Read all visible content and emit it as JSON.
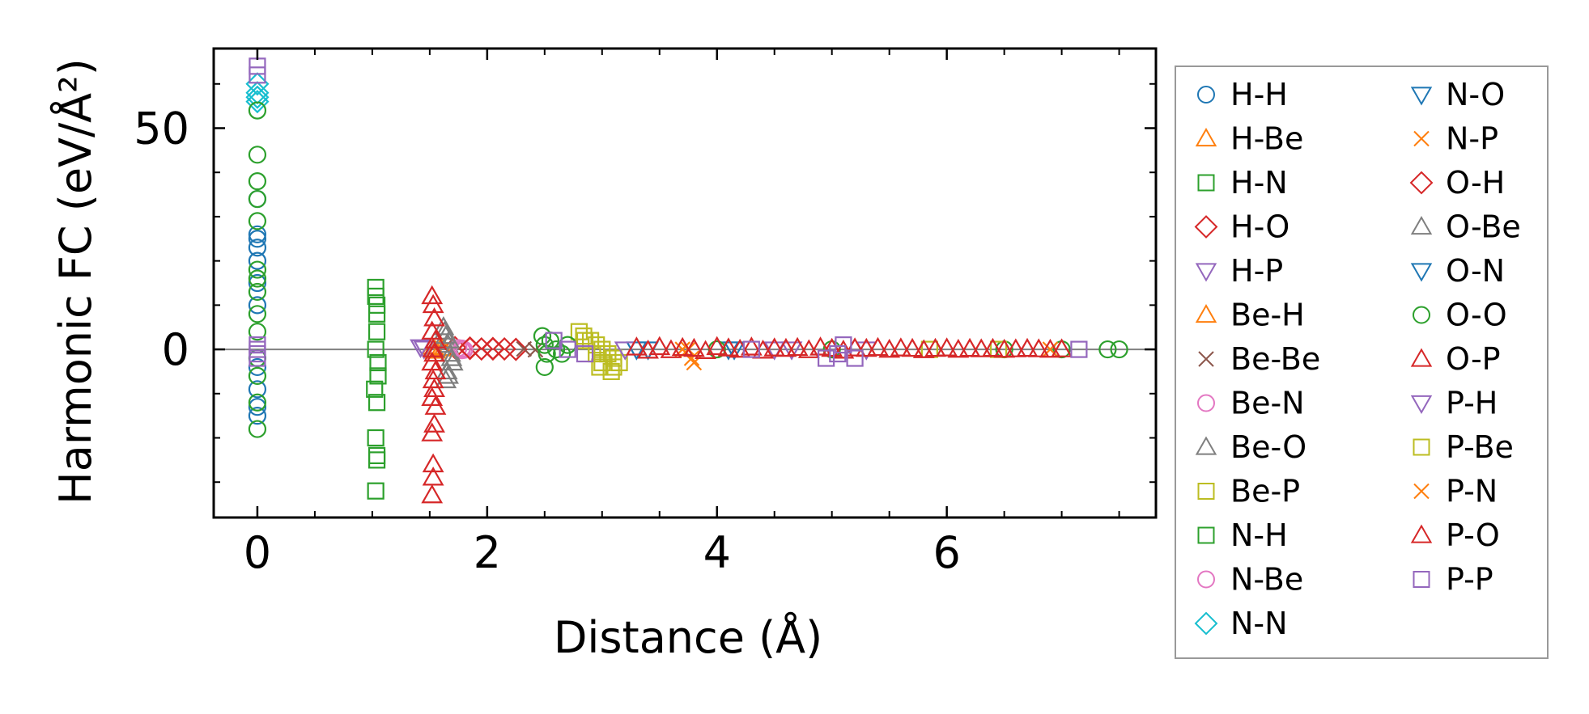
{
  "chart_data": {
    "type": "scatter",
    "title": "",
    "xlabel": "Distance (Å)",
    "ylabel": "Harmonic FC (eV/Å²)",
    "xlim": [
      -0.38,
      7.82
    ],
    "ylim": [
      -38,
      68
    ],
    "xticks": [
      0,
      2,
      4,
      6
    ],
    "xtick_labels": [
      "0",
      "2",
      "4",
      "6"
    ],
    "yticks": [
      0,
      50
    ],
    "ytick_labels": [
      "0",
      "50"
    ],
    "grid": false,
    "zero_line": true,
    "legend": {
      "position": "outside-right",
      "columns": 2
    },
    "series": [
      {
        "name": "H-H",
        "marker": "circle",
        "color": "#1f77b4",
        "x": [
          0,
          0,
          0,
          0,
          0,
          0,
          0,
          0,
          0,
          0,
          0
        ],
        "y": [
          34,
          26,
          25,
          23,
          20,
          15,
          10,
          -4,
          -9,
          -13,
          -15
        ]
      },
      {
        "name": "H-Be",
        "marker": "triangle-up",
        "color": "#ff7f0e",
        "x": [
          1.52,
          1.6
        ],
        "y": [
          0.6,
          0.3
        ]
      },
      {
        "name": "H-N",
        "marker": "square",
        "color": "#2ca02c",
        "x": [
          1.03,
          1.04,
          1.04,
          1.03,
          1.05,
          1.04,
          1.03,
          1.04,
          1.04,
          1.03
        ],
        "y": [
          14,
          10,
          4,
          0,
          -6,
          -12,
          -20,
          -24,
          -25,
          -32
        ]
      },
      {
        "name": "H-O",
        "marker": "diamond",
        "color": "#d62728",
        "x": [
          1.72,
          1.85,
          1.95,
          2.05,
          2.15,
          2.25
        ],
        "y": [
          0.4,
          0.2,
          0.1,
          0.1,
          0.1,
          0
        ]
      },
      {
        "name": "H-P",
        "marker": "triangle-down",
        "color": "#9467bd",
        "x": [
          1.42,
          1.45
        ],
        "y": [
          0.5,
          0.2
        ]
      },
      {
        "name": "Be-H",
        "marker": "triangle-up",
        "color": "#ff7f0e",
        "x": [
          1.55,
          1.62
        ],
        "y": [
          -0.3,
          0.2
        ]
      },
      {
        "name": "Be-Be",
        "marker": "x",
        "color": "#8c564b",
        "x": [
          2.32,
          2.42
        ],
        "y": [
          0.1,
          -0.1
        ]
      },
      {
        "name": "Be-N",
        "marker": "circle",
        "color": "#e377c2",
        "x": [
          1.75,
          1.78
        ],
        "y": [
          0.3,
          -0.2
        ]
      },
      {
        "name": "Be-O",
        "marker": "triangle-up",
        "color": "#7f7f7f",
        "x": [
          1.62,
          1.64,
          1.66,
          1.68,
          1.7,
          1.66,
          1.64
        ],
        "y": [
          5,
          3,
          1,
          -1,
          -3,
          -6,
          -7
        ]
      },
      {
        "name": "Be-P",
        "marker": "square",
        "color": "#bcbd22",
        "x": [
          2.8,
          2.84,
          2.9,
          2.95,
          3.0,
          3.05,
          3.1,
          3.15,
          3.08,
          2.98
        ],
        "y": [
          4,
          3,
          2,
          1,
          0,
          -1,
          -2,
          -3,
          -5,
          -4
        ]
      },
      {
        "name": "N-H",
        "marker": "square",
        "color": "#2ca02c",
        "x": [
          1.03,
          1.04,
          1.05,
          1.02
        ],
        "y": [
          12,
          8,
          -3,
          -9
        ]
      },
      {
        "name": "N-Be",
        "marker": "circle",
        "color": "#e377c2",
        "x": [
          1.78,
          1.8
        ],
        "y": [
          0.2,
          -0.1
        ]
      },
      {
        "name": "N-N",
        "marker": "diamond",
        "color": "#17becf",
        "x": [
          0,
          0,
          0,
          0
        ],
        "y": [
          60,
          58,
          57,
          56
        ]
      },
      {
        "name": "N-O",
        "marker": "triangle-down",
        "color": "#1f77b4",
        "x": [
          3.3,
          4.1
        ],
        "y": [
          0,
          0
        ]
      },
      {
        "name": "N-P",
        "marker": "x",
        "color": "#ff7f0e",
        "x": [
          3.75,
          3.78,
          3.8
        ],
        "y": [
          0,
          -2,
          -3
        ]
      },
      {
        "name": "O-H",
        "marker": "diamond",
        "color": "#d62728",
        "x": [
          1.85,
          2.05
        ],
        "y": [
          0.3,
          0.2
        ]
      },
      {
        "name": "O-Be",
        "marker": "triangle-up",
        "color": "#7f7f7f",
        "x": [
          1.63,
          1.67,
          1.69,
          1.65
        ],
        "y": [
          4,
          2,
          -2,
          -5
        ]
      },
      {
        "name": "O-N",
        "marker": "triangle-down",
        "color": "#1f77b4",
        "x": [
          3.4,
          4.15
        ],
        "y": [
          0,
          0
        ]
      },
      {
        "name": "O-O",
        "marker": "circle",
        "color": "#2ca02c",
        "x": [
          0,
          0,
          0,
          0,
          0,
          0,
          0,
          0,
          0,
          0,
          0,
          0,
          0,
          0,
          2.48,
          2.5,
          2.52,
          2.5,
          2.55,
          2.6,
          2.65,
          2.7,
          4.0,
          5.0,
          6.5,
          7.0,
          7.4,
          7.5
        ],
        "y": [
          54,
          44,
          38,
          34,
          29,
          18,
          16,
          13,
          8,
          4,
          -2,
          -6,
          -12,
          -18,
          3,
          1,
          -1,
          -4,
          2,
          0,
          -1,
          1,
          0,
          0,
          0,
          0,
          0,
          0
        ]
      },
      {
        "name": "O-P",
        "marker": "triangle-up",
        "color": "#d62728",
        "x": [
          1.52,
          1.53,
          1.54,
          1.52,
          1.55,
          1.53,
          1.54,
          1.52,
          1.55,
          1.53,
          1.54,
          1.52,
          1.55,
          1.54,
          1.52,
          1.53,
          1.53,
          1.52
        ],
        "y": [
          12,
          10,
          7,
          4,
          2,
          0,
          -1,
          -3,
          -5,
          -7,
          -9,
          -11,
          -13,
          -17,
          -19,
          -26,
          -29,
          -33
        ]
      },
      {
        "name": "P-H",
        "marker": "triangle-down",
        "color": "#9467bd",
        "x": [
          3.2,
          4.5,
          4.65,
          5.3
        ],
        "y": [
          0,
          0,
          0,
          0
        ]
      },
      {
        "name": "P-Be",
        "marker": "square",
        "color": "#bcbd22",
        "x": [
          2.85,
          2.95,
          3.0,
          3.1,
          5.85,
          6.45
        ],
        "y": [
          2,
          -1,
          -3,
          -4,
          0,
          0
        ]
      },
      {
        "name": "P-N",
        "marker": "x",
        "color": "#ff7f0e",
        "x": [
          3.7,
          6.9
        ],
        "y": [
          0,
          0
        ]
      },
      {
        "name": "P-O",
        "marker": "triangle-up",
        "color": "#d62728",
        "x": [
          3.3,
          3.4,
          3.5,
          3.6,
          3.7,
          3.8,
          3.9,
          4.0,
          4.1,
          4.2,
          4.3,
          4.4,
          4.5,
          4.6,
          4.7,
          4.8,
          4.9,
          5.0,
          5.1,
          5.2,
          5.3,
          5.4,
          5.5,
          5.6,
          5.7,
          5.8,
          5.9,
          6.0,
          6.1,
          6.2,
          6.3,
          6.4,
          6.5,
          6.6,
          6.7,
          6.8,
          6.9,
          7.0
        ],
        "y": [
          0.4,
          -0.3,
          0.5,
          -0.2,
          0.3,
          0.1,
          -0.4,
          0.5,
          0.2,
          -0.1,
          0.4,
          -0.3,
          0.2,
          0.1,
          0.3,
          -0.2,
          0.4,
          0.1,
          -0.3,
          0.2,
          0.1,
          0.3,
          -0.1,
          0.2,
          0.1,
          -0.2,
          0.1,
          0.2,
          -0.1,
          0.1,
          0,
          0.1,
          -0.1,
          0,
          0.1,
          0,
          -0.1,
          0
        ]
      },
      {
        "name": "P-P",
        "marker": "square",
        "color": "#9467bd",
        "x": [
          0,
          0,
          0,
          0,
          0,
          0,
          2.58,
          2.7,
          2.85,
          4.3,
          4.95,
          5.05,
          5.1,
          5.2,
          7.15
        ],
        "y": [
          64,
          62,
          1,
          0,
          -1,
          -2,
          2,
          0,
          -1,
          0,
          -2,
          -1,
          1,
          -2,
          0
        ]
      }
    ]
  }
}
